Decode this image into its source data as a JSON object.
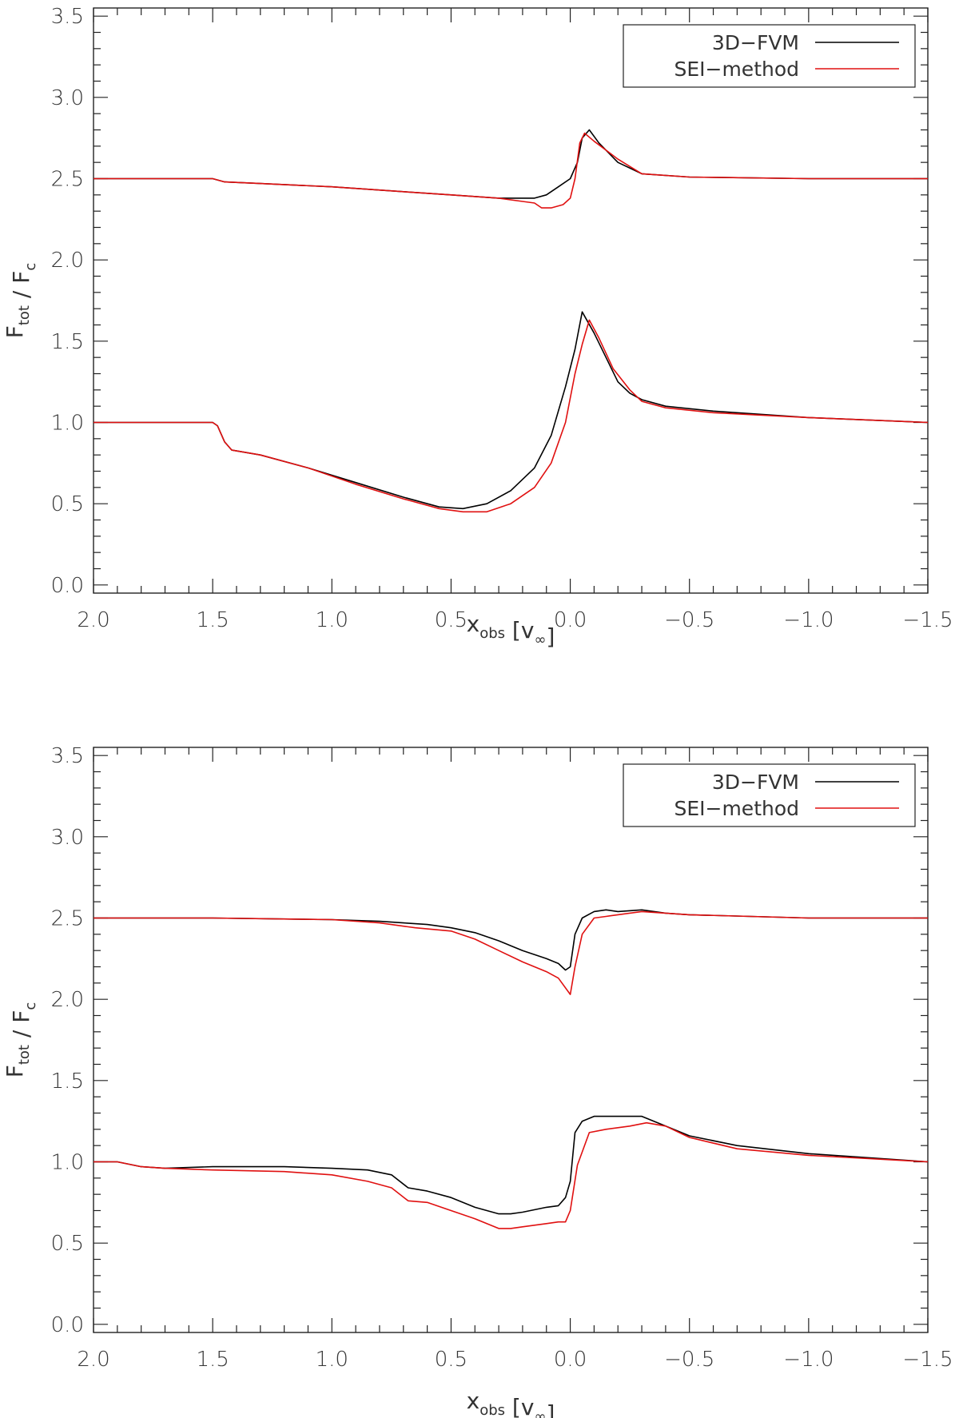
{
  "chart_data": [
    {
      "type": "line",
      "title": "",
      "xlabel": {
        "main": "x",
        "sub": "obs",
        "unit": "[v",
        "unit_sub": "∞",
        "close": "]"
      },
      "ylabel": {
        "main": "F",
        "sub": "tot",
        "sep": " / ",
        "den": "F",
        "den_sub": "c"
      },
      "xlim": [
        2.0,
        -1.5
      ],
      "ylim": [
        -0.05,
        3.55
      ],
      "xticks": [
        2.0,
        1.5,
        1.0,
        0.5,
        0.0,
        -0.5,
        -1.0,
        -1.5
      ],
      "xtick_labels": [
        "2.0",
        "1.5",
        "1.0",
        "0.5",
        "0.0",
        "−0.5",
        "−1.0",
        "−1.5"
      ],
      "yticks": [
        0.0,
        0.5,
        1.0,
        1.5,
        2.0,
        2.5,
        3.0,
        3.5
      ],
      "ytick_labels": [
        "0.0",
        "0.5",
        "1.0",
        "1.5",
        "2.0",
        "2.5",
        "3.0",
        "3.5"
      ],
      "legend_position": "top-right",
      "series": [
        {
          "name": "3D−FVM",
          "color": "#000000",
          "x": [
            2.0,
            1.52,
            1.5,
            1.45,
            1.3,
            1.0,
            0.7,
            0.5,
            0.3,
            0.2,
            0.15,
            0.1,
            0.05,
            0.0,
            -0.03,
            -0.05,
            -0.08,
            -0.12,
            -0.2,
            -0.3,
            -0.5,
            -1.0,
            -1.5
          ],
          "y": [
            2.5,
            2.5,
            2.5,
            2.48,
            2.47,
            2.45,
            2.42,
            2.4,
            2.38,
            2.38,
            2.38,
            2.4,
            2.45,
            2.5,
            2.6,
            2.75,
            2.8,
            2.72,
            2.6,
            2.53,
            2.51,
            2.5,
            2.5
          ]
        },
        {
          "name": "SEI−method",
          "color": "#e01010",
          "x": [
            2.0,
            1.52,
            1.5,
            1.45,
            1.3,
            1.0,
            0.7,
            0.5,
            0.3,
            0.2,
            0.15,
            0.12,
            0.08,
            0.03,
            0.0,
            -0.02,
            -0.04,
            -0.06,
            -0.1,
            -0.2,
            -0.3,
            -0.5,
            -1.0,
            -1.5
          ],
          "y": [
            2.5,
            2.5,
            2.5,
            2.48,
            2.47,
            2.45,
            2.42,
            2.4,
            2.38,
            2.36,
            2.35,
            2.32,
            2.32,
            2.34,
            2.38,
            2.5,
            2.72,
            2.78,
            2.73,
            2.62,
            2.53,
            2.51,
            2.5,
            2.5
          ]
        },
        {
          "name": "",
          "color": "#000000",
          "x": [
            2.0,
            1.5,
            1.48,
            1.45,
            1.42,
            1.3,
            1.1,
            0.9,
            0.7,
            0.55,
            0.45,
            0.35,
            0.25,
            0.15,
            0.08,
            0.02,
            -0.02,
            -0.05,
            -0.1,
            -0.15,
            -0.2,
            -0.25,
            -0.3,
            -0.4,
            -0.6,
            -1.0,
            -1.5
          ],
          "y": [
            1.0,
            1.0,
            0.98,
            0.88,
            0.83,
            0.8,
            0.72,
            0.63,
            0.54,
            0.48,
            0.47,
            0.5,
            0.58,
            0.72,
            0.92,
            1.22,
            1.45,
            1.68,
            1.55,
            1.4,
            1.25,
            1.18,
            1.14,
            1.1,
            1.07,
            1.03,
            1.0
          ]
        },
        {
          "name": "",
          "color": "#e01010",
          "x": [
            2.0,
            1.5,
            1.48,
            1.45,
            1.42,
            1.3,
            1.1,
            0.9,
            0.7,
            0.55,
            0.45,
            0.35,
            0.25,
            0.15,
            0.08,
            0.02,
            -0.02,
            -0.05,
            -0.08,
            -0.12,
            -0.18,
            -0.25,
            -0.3,
            -0.4,
            -0.6,
            -1.0,
            -1.5
          ],
          "y": [
            1.0,
            1.0,
            0.98,
            0.88,
            0.83,
            0.8,
            0.72,
            0.62,
            0.53,
            0.47,
            0.45,
            0.45,
            0.5,
            0.6,
            0.75,
            1.0,
            1.3,
            1.48,
            1.63,
            1.52,
            1.33,
            1.2,
            1.13,
            1.09,
            1.06,
            1.03,
            1.0
          ]
        }
      ]
    },
    {
      "type": "line",
      "title": "",
      "xlabel": {
        "main": "x",
        "sub": "obs",
        "unit": "[v",
        "unit_sub": "∞",
        "close": "]"
      },
      "ylabel": {
        "main": "F",
        "sub": "tot",
        "sep": " / ",
        "den": "F",
        "den_sub": "c"
      },
      "xlim": [
        2.0,
        -1.5
      ],
      "ylim": [
        -0.05,
        3.55
      ],
      "xticks": [
        2.0,
        1.5,
        1.0,
        0.5,
        0.0,
        -0.5,
        -1.0,
        -1.5
      ],
      "xtick_labels": [
        "2.0",
        "1.5",
        "1.0",
        "0.5",
        "0.0",
        "−0.5",
        "−1.0",
        "−1.5"
      ],
      "yticks": [
        0.0,
        0.5,
        1.0,
        1.5,
        2.0,
        2.5,
        3.0,
        3.5
      ],
      "ytick_labels": [
        "0.0",
        "0.5",
        "1.0",
        "1.5",
        "2.0",
        "2.5",
        "3.0",
        "3.5"
      ],
      "legend_position": "top-right",
      "series": [
        {
          "name": "3D−FVM",
          "color": "#000000",
          "x": [
            2.0,
            1.5,
            1.0,
            0.8,
            0.7,
            0.6,
            0.5,
            0.4,
            0.3,
            0.2,
            0.1,
            0.05,
            0.02,
            0.0,
            -0.02,
            -0.05,
            -0.1,
            -0.15,
            -0.2,
            -0.3,
            -0.4,
            -0.5,
            -1.0,
            -1.5
          ],
          "y": [
            2.5,
            2.5,
            2.49,
            2.48,
            2.47,
            2.46,
            2.44,
            2.41,
            2.36,
            2.3,
            2.25,
            2.22,
            2.18,
            2.2,
            2.4,
            2.5,
            2.54,
            2.55,
            2.54,
            2.55,
            2.53,
            2.52,
            2.5,
            2.5
          ]
        },
        {
          "name": "SEI−method",
          "color": "#e01010",
          "x": [
            2.0,
            1.5,
            1.0,
            0.8,
            0.7,
            0.65,
            0.5,
            0.4,
            0.3,
            0.2,
            0.1,
            0.05,
            0.0,
            -0.02,
            -0.05,
            -0.1,
            -0.15,
            -0.2,
            -0.3,
            -0.4,
            -0.5,
            -1.0,
            -1.5
          ],
          "y": [
            2.5,
            2.5,
            2.49,
            2.47,
            2.45,
            2.44,
            2.42,
            2.37,
            2.3,
            2.23,
            2.17,
            2.13,
            2.03,
            2.2,
            2.4,
            2.5,
            2.51,
            2.52,
            2.54,
            2.53,
            2.52,
            2.5,
            2.5
          ]
        },
        {
          "name": "",
          "color": "#000000",
          "x": [
            2.0,
            1.9,
            1.8,
            1.7,
            1.5,
            1.2,
            1.0,
            0.85,
            0.75,
            0.68,
            0.6,
            0.5,
            0.4,
            0.3,
            0.25,
            0.2,
            0.1,
            0.05,
            0.02,
            0.0,
            -0.02,
            -0.05,
            -0.1,
            -0.2,
            -0.3,
            -0.4,
            -0.5,
            -0.7,
            -1.0,
            -1.5
          ],
          "y": [
            1.0,
            1.0,
            0.97,
            0.96,
            0.97,
            0.97,
            0.96,
            0.95,
            0.92,
            0.84,
            0.82,
            0.78,
            0.72,
            0.68,
            0.68,
            0.69,
            0.72,
            0.73,
            0.78,
            0.88,
            1.18,
            1.25,
            1.28,
            1.28,
            1.28,
            1.22,
            1.16,
            1.1,
            1.05,
            1.0
          ]
        },
        {
          "name": "",
          "color": "#e01010",
          "x": [
            2.0,
            1.9,
            1.8,
            1.7,
            1.5,
            1.2,
            1.0,
            0.85,
            0.75,
            0.68,
            0.6,
            0.5,
            0.4,
            0.3,
            0.25,
            0.2,
            0.1,
            0.05,
            0.02,
            0.0,
            -0.03,
            -0.08,
            -0.15,
            -0.25,
            -0.32,
            -0.4,
            -0.5,
            -0.7,
            -1.0,
            -1.5
          ],
          "y": [
            1.0,
            1.0,
            0.97,
            0.96,
            0.95,
            0.94,
            0.92,
            0.88,
            0.84,
            0.76,
            0.75,
            0.7,
            0.65,
            0.59,
            0.59,
            0.6,
            0.62,
            0.63,
            0.63,
            0.7,
            0.98,
            1.18,
            1.2,
            1.22,
            1.24,
            1.22,
            1.15,
            1.08,
            1.04,
            1.0
          ]
        }
      ]
    }
  ]
}
